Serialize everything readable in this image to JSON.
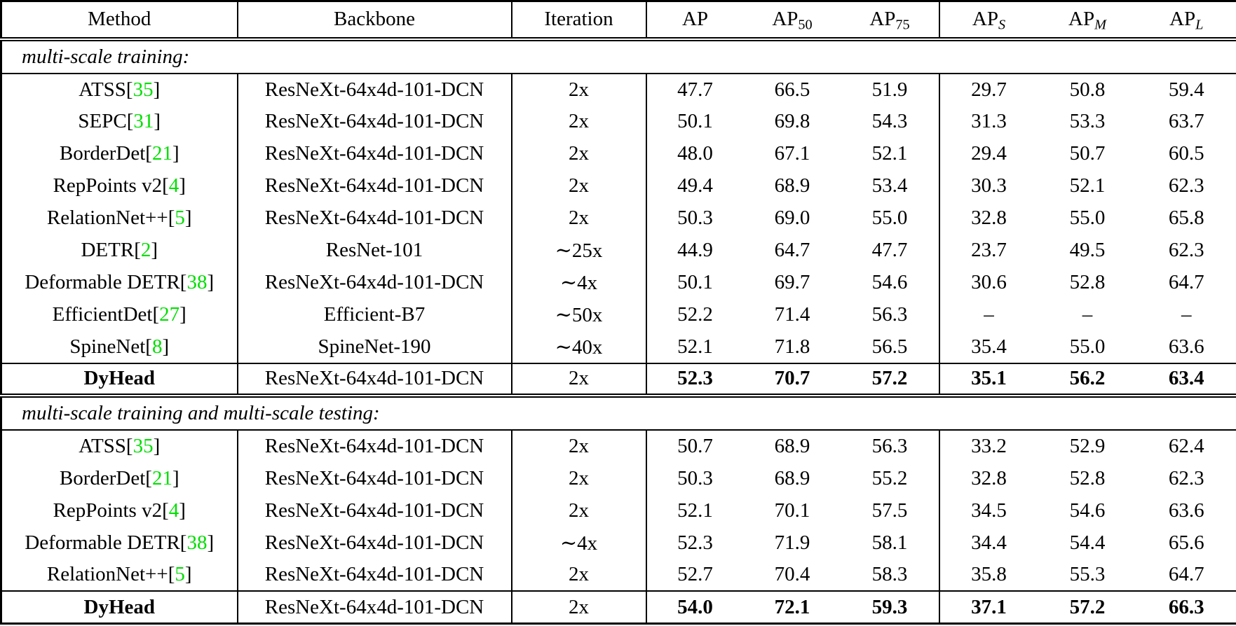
{
  "table": {
    "citation_color": "#00DF00",
    "header": [
      {
        "key": "method",
        "label": "Method",
        "sub": "",
        "italic_sub": false
      },
      {
        "key": "backbone",
        "label": "Backbone",
        "sub": "",
        "italic_sub": false
      },
      {
        "key": "iteration",
        "label": "Iteration",
        "sub": "",
        "italic_sub": false
      },
      {
        "key": "ap",
        "label": "AP",
        "sub": "",
        "italic_sub": false
      },
      {
        "key": "ap50",
        "label": "AP",
        "sub": "50",
        "italic_sub": false
      },
      {
        "key": "ap75",
        "label": "AP",
        "sub": "75",
        "italic_sub": false
      },
      {
        "key": "aps",
        "label": "AP",
        "sub": "S",
        "italic_sub": true
      },
      {
        "key": "apm",
        "label": "AP",
        "sub": "M",
        "italic_sub": true
      },
      {
        "key": "apl",
        "label": "AP",
        "sub": "L",
        "italic_sub": true
      }
    ],
    "sections": [
      {
        "label": "multi-scale training:",
        "rows": [
          {
            "method": "ATSS",
            "cite": "35",
            "backbone": "ResNeXt-64x4d-101-DCN",
            "iteration": "2x",
            "values": [
              "47.7",
              "66.5",
              "51.9",
              "29.7",
              "50.8",
              "59.4"
            ],
            "bold": false
          },
          {
            "method": "SEPC",
            "cite": "31",
            "backbone": "ResNeXt-64x4d-101-DCN",
            "iteration": "2x",
            "values": [
              "50.1",
              "69.8",
              "54.3",
              "31.3",
              "53.3",
              "63.7"
            ],
            "bold": false
          },
          {
            "method": "BorderDet",
            "cite": "21",
            "backbone": "ResNeXt-64x4d-101-DCN",
            "iteration": "2x",
            "values": [
              "48.0",
              "67.1",
              "52.1",
              "29.4",
              "50.7",
              "60.5"
            ],
            "bold": false
          },
          {
            "method": "RepPoints v2",
            "cite": "4",
            "backbone": "ResNeXt-64x4d-101-DCN",
            "iteration": "2x",
            "values": [
              "49.4",
              "68.9",
              "53.4",
              "30.3",
              "52.1",
              "62.3"
            ],
            "bold": false
          },
          {
            "method": "RelationNet++",
            "cite": "5",
            "backbone": "ResNeXt-64x4d-101-DCN",
            "iteration": "2x",
            "values": [
              "50.3",
              "69.0",
              "55.0",
              "32.8",
              "55.0",
              "65.8"
            ],
            "bold": false
          },
          {
            "method": "DETR",
            "cite": "2",
            "backbone": "ResNet-101",
            "iteration": "∼25x",
            "values": [
              "44.9",
              "64.7",
              "47.7",
              "23.7",
              "49.5",
              "62.3"
            ],
            "bold": false
          },
          {
            "method": "Deformable DETR",
            "cite": "38",
            "backbone": "ResNeXt-64x4d-101-DCN",
            "iteration": "∼4x",
            "values": [
              "50.1",
              "69.7",
              "54.6",
              "30.6",
              "52.8",
              "64.7"
            ],
            "bold": false
          },
          {
            "method": "EfficientDet",
            "cite": "27",
            "backbone": "Efficient-B7",
            "iteration": "∼50x",
            "values": [
              "52.2",
              "71.4",
              "56.3",
              "–",
              "–",
              "–"
            ],
            "bold": false
          },
          {
            "method": "SpineNet",
            "cite": "8",
            "backbone": "SpineNet-190",
            "iteration": "∼40x",
            "values": [
              "52.1",
              "71.8",
              "56.5",
              "35.4",
              "55.0",
              "63.6"
            ],
            "bold": false
          },
          {
            "method": "DyHead",
            "cite": "",
            "backbone": "ResNeXt-64x4d-101-DCN",
            "iteration": "2x",
            "values": [
              "52.3",
              "70.7",
              "57.2",
              "35.1",
              "56.2",
              "63.4"
            ],
            "bold": true
          }
        ]
      },
      {
        "label": "multi-scale training and multi-scale testing:",
        "rows": [
          {
            "method": "ATSS",
            "cite": "35",
            "backbone": "ResNeXt-64x4d-101-DCN",
            "iteration": "2x",
            "values": [
              "50.7",
              "68.9",
              "56.3",
              "33.2",
              "52.9",
              "62.4"
            ],
            "bold": false
          },
          {
            "method": "BorderDet",
            "cite": "21",
            "backbone": "ResNeXt-64x4d-101-DCN",
            "iteration": "2x",
            "values": [
              "50.3",
              "68.9",
              "55.2",
              "32.8",
              "52.8",
              "62.3"
            ],
            "bold": false
          },
          {
            "method": "RepPoints v2",
            "cite": "4",
            "backbone": "ResNeXt-64x4d-101-DCN",
            "iteration": "2x",
            "values": [
              "52.1",
              "70.1",
              "57.5",
              "34.5",
              "54.6",
              "63.6"
            ],
            "bold": false
          },
          {
            "method": "Deformable DETR",
            "cite": "38",
            "backbone": "ResNeXt-64x4d-101-DCN",
            "iteration": "∼4x",
            "values": [
              "52.3",
              "71.9",
              "58.1",
              "34.4",
              "54.4",
              "65.6"
            ],
            "bold": false
          },
          {
            "method": "RelationNet++",
            "cite": "5",
            "backbone": "ResNeXt-64x4d-101-DCN",
            "iteration": "2x",
            "values": [
              "52.7",
              "70.4",
              "58.3",
              "35.8",
              "55.3",
              "64.7"
            ],
            "bold": false
          },
          {
            "method": "DyHead",
            "cite": "",
            "backbone": "ResNeXt-64x4d-101-DCN",
            "iteration": "2x",
            "values": [
              "54.0",
              "72.1",
              "59.3",
              "37.1",
              "57.2",
              "66.3"
            ],
            "bold": true
          }
        ]
      }
    ]
  }
}
